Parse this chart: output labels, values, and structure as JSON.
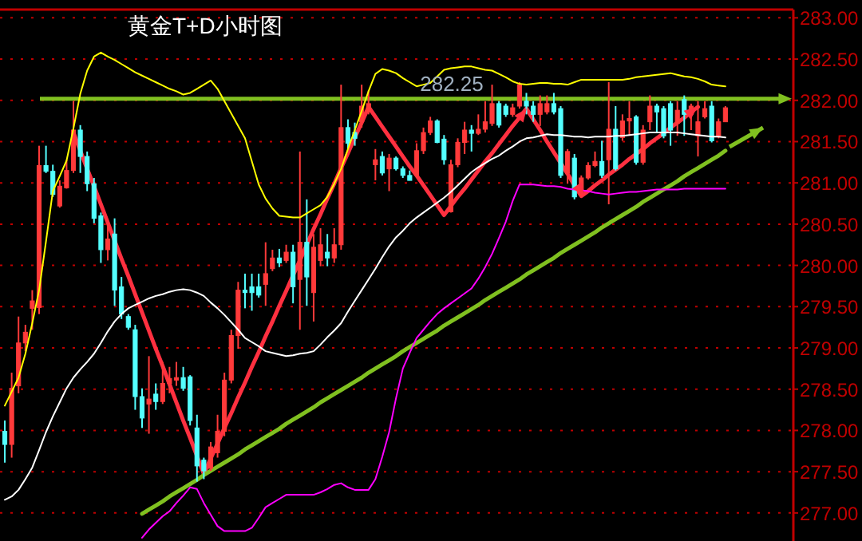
{
  "chart_data": {
    "type": "candlestick",
    "title": "黄金T+D小时图",
    "categories": [
      null,
      null,
      null,
      null,
      null,
      null,
      null,
      null,
      null,
      null,
      null,
      null,
      null,
      null,
      null,
      null,
      null,
      null,
      null,
      null,
      null,
      null,
      null,
      null,
      null,
      null,
      null,
      null,
      null,
      null,
      null,
      null,
      null,
      null,
      null,
      null,
      null,
      null,
      null,
      null,
      null,
      null,
      null,
      null,
      null,
      null,
      null,
      null,
      null,
      null,
      null,
      null,
      null,
      null,
      null,
      null,
      null,
      null,
      null,
      null,
      null,
      null,
      null,
      null,
      null,
      null,
      null,
      null,
      null,
      null,
      null,
      null,
      null,
      null,
      null,
      null,
      null,
      null,
      null,
      null,
      null,
      null,
      null,
      null,
      null,
      null,
      null,
      null,
      null,
      null,
      null,
      null,
      null,
      null,
      null,
      null,
      null,
      null,
      null,
      null,
      null,
      null,
      null,
      null,
      null,
      null
    ],
    "ohlc": [
      [
        277.99,
        278.12,
        277.61,
        277.83
      ],
      [
        277.83,
        278.7,
        277.67,
        278.51
      ],
      [
        278.54,
        279.38,
        278.45,
        279.06
      ],
      [
        279.06,
        279.28,
        278.96,
        279.19
      ],
      [
        279.48,
        279.7,
        279.22,
        279.57
      ],
      [
        279.49,
        281.45,
        279.41,
        281.21
      ],
      [
        281.21,
        281.45,
        281.12,
        281.14
      ],
      [
        281.14,
        281.22,
        280.83,
        280.86
      ],
      [
        280.72,
        281.03,
        280.7,
        280.96
      ],
      [
        280.94,
        281.28,
        280.93,
        281.15
      ],
      [
        281.15,
        281.99,
        281.12,
        281.64
      ],
      [
        281.64,
        281.7,
        281.12,
        281.32
      ],
      [
        281.32,
        281.38,
        280.9,
        280.99
      ],
      [
        280.99,
        281.06,
        280.51,
        280.57
      ],
      [
        280.6,
        280.64,
        280.03,
        280.19
      ],
      [
        280.19,
        280.51,
        280.06,
        280.32
      ],
      [
        280.38,
        280.57,
        279.51,
        279.7
      ],
      [
        279.74,
        279.86,
        279.35,
        279.41
      ],
      [
        279.38,
        279.41,
        279.22,
        279.25
      ],
      [
        279.22,
        279.28,
        278.25,
        278.41
      ],
      [
        278.41,
        278.51,
        278.03,
        278.15
      ],
      [
        278.32,
        278.9,
        277.96,
        278.38
      ],
      [
        278.44,
        278.57,
        278.25,
        278.35
      ],
      [
        278.35,
        278.83,
        278.32,
        278.57
      ],
      [
        278.57,
        278.77,
        278.45,
        278.63
      ],
      [
        278.61,
        278.83,
        278.54,
        278.64
      ],
      [
        278.64,
        278.77,
        278.48,
        278.51
      ],
      [
        278.65,
        278.67,
        278.06,
        278.12
      ],
      [
        278.03,
        278.19,
        277.38,
        277.57
      ],
      [
        277.64,
        277.67,
        277.41,
        277.51
      ],
      [
        277.54,
        277.86,
        277.51,
        277.8
      ],
      [
        277.73,
        278.19,
        277.67,
        277.99
      ],
      [
        277.99,
        278.7,
        277.93,
        278.61
      ],
      [
        278.61,
        279.22,
        278.57,
        279.15
      ],
      [
        279.15,
        279.8,
        278.99,
        279.7
      ],
      [
        279.7,
        279.9,
        279.48,
        279.67
      ],
      [
        279.74,
        279.9,
        279.45,
        279.67
      ],
      [
        279.74,
        279.9,
        279.61,
        279.64
      ],
      [
        279.77,
        280.28,
        279.51,
        279.9
      ],
      [
        279.96,
        280.19,
        279.93,
        280.09
      ],
      [
        280.09,
        280.2,
        279.98,
        280.03
      ],
      [
        280.06,
        280.25,
        280.03,
        280.16
      ],
      [
        280.16,
        280.25,
        279.54,
        279.74
      ],
      [
        279.83,
        281.38,
        279.22,
        280.28
      ],
      [
        280.28,
        280.8,
        279.51,
        279.86
      ],
      [
        279.67,
        280.38,
        279.32,
        280.22
      ],
      [
        280.06,
        280.45,
        279.99,
        280.25
      ],
      [
        280.16,
        280.38,
        279.99,
        280.09
      ],
      [
        280.09,
        280.45,
        280.03,
        280.25
      ],
      [
        280.25,
        282.19,
        280.19,
        281.67
      ],
      [
        281.67,
        281.77,
        281.41,
        281.48
      ],
      [
        281.61,
        281.73,
        281.45,
        281.54
      ],
      [
        281.74,
        282.19,
        281.67,
        281.93
      ],
      [
        281.86,
        282.12,
        281.83,
        281.96
      ],
      [
        281.22,
        281.41,
        281.03,
        281.28
      ],
      [
        281.32,
        281.38,
        281.09,
        281.12
      ],
      [
        281.17,
        281.35,
        280.9,
        281.3
      ],
      [
        281.3,
        281.32,
        281.15,
        281.17
      ],
      [
        281.17,
        281.2,
        281.06,
        281.09
      ],
      [
        281.09,
        281.15,
        281.03,
        281.03
      ],
      [
        281.09,
        281.48,
        281.06,
        281.39
      ],
      [
        281.39,
        281.67,
        281.35,
        281.61
      ],
      [
        281.61,
        281.8,
        281.58,
        281.75
      ],
      [
        281.75,
        281.77,
        281.48,
        281.49
      ],
      [
        281.53,
        281.58,
        281.22,
        281.28
      ],
      [
        280.65,
        281.28,
        280.64,
        281.22
      ],
      [
        281.22,
        281.54,
        281.19,
        281.49
      ],
      [
        281.49,
        281.74,
        281.35,
        281.64
      ],
      [
        281.64,
        281.7,
        281.38,
        281.6
      ],
      [
        281.6,
        281.83,
        281.58,
        281.65
      ],
      [
        281.65,
        281.99,
        281.61,
        281.74
      ],
      [
        281.72,
        282.19,
        281.69,
        281.96
      ],
      [
        281.96,
        281.99,
        281.67,
        281.7
      ],
      [
        281.93,
        281.96,
        281.8,
        281.83
      ],
      [
        281.83,
        281.96,
        281.8,
        281.91
      ],
      [
        281.93,
        282.22,
        281.9,
        282.19
      ],
      [
        281.99,
        282.09,
        281.83,
        281.93
      ],
      [
        281.93,
        281.99,
        281.74,
        281.83
      ],
      [
        281.83,
        282.06,
        281.69,
        281.96
      ],
      [
        281.86,
        282.06,
        281.83,
        281.96
      ],
      [
        281.96,
        282.09,
        281.83,
        281.86
      ],
      [
        281.9,
        281.93,
        281.06,
        281.09
      ],
      [
        281.12,
        281.41,
        280.99,
        281.38
      ],
      [
        281.3,
        281.35,
        280.8,
        280.83
      ],
      [
        280.85,
        281.09,
        280.84,
        281.06
      ],
      [
        281.06,
        281.25,
        281.04,
        281.21
      ],
      [
        281.21,
        281.38,
        281.19,
        281.26
      ],
      [
        281.26,
        281.51,
        281.06,
        281.09
      ],
      [
        281.28,
        282.22,
        280.74,
        281.65
      ],
      [
        281.65,
        281.93,
        281.15,
        281.17
      ],
      [
        281.55,
        281.83,
        281.51,
        281.75
      ],
      [
        281.75,
        281.99,
        281.57,
        281.78
      ],
      [
        281.8,
        281.82,
        281.22,
        281.25
      ],
      [
        281.25,
        281.7,
        281.22,
        281.64
      ],
      [
        281.74,
        282.06,
        281.64,
        281.93
      ],
      [
        281.93,
        281.96,
        281.61,
        281.86
      ],
      [
        281.9,
        281.93,
        281.54,
        281.57
      ],
      [
        281.96,
        281.99,
        281.45,
        281.64
      ],
      [
        281.72,
        281.99,
        281.57,
        281.88
      ],
      [
        282.01,
        282.06,
        281.57,
        281.83
      ],
      [
        281.83,
        281.96,
        281.64,
        281.93
      ],
      [
        281.57,
        281.99,
        281.32,
        281.74
      ],
      [
        281.8,
        281.99,
        281.78,
        281.9
      ],
      [
        281.93,
        281.99,
        281.49,
        281.51
      ],
      [
        281.57,
        281.78,
        281.54,
        281.74
      ],
      [
        281.74,
        281.93,
        281.74,
        281.91
      ]
    ],
    "series": [
      {
        "type": "line",
        "color": "#ffff00",
        "values": [
          278.3,
          278.47,
          278.64,
          278.93,
          279.3,
          279.7,
          280.29,
          280.9,
          281.08,
          281.27,
          281.66,
          282.08,
          282.36,
          282.53,
          282.58,
          282.53,
          282.49,
          282.44,
          282.39,
          282.34,
          282.3,
          282.26,
          282.22,
          282.18,
          282.14,
          282.11,
          282.07,
          282.09,
          282.14,
          282.19,
          282.24,
          282.14,
          281.99,
          281.84,
          281.69,
          281.54,
          281.26,
          280.98,
          280.81,
          280.69,
          280.6,
          280.59,
          280.58,
          280.58,
          280.63,
          280.68,
          280.73,
          280.83,
          280.99,
          281.17,
          281.41,
          281.64,
          281.87,
          282.11,
          282.32,
          282.38,
          282.36,
          282.33,
          282.27,
          282.22,
          282.17,
          282.19,
          282.21,
          282.29,
          282.37,
          282.39,
          282.4,
          282.41,
          282.41,
          282.39,
          282.37,
          282.36,
          282.32,
          282.28,
          282.23,
          282.2,
          282.19,
          282.2,
          282.21,
          282.21,
          282.2,
          282.2,
          282.19,
          282.22,
          282.25,
          282.25,
          282.25,
          282.25,
          282.25,
          282.25,
          282.25,
          282.26,
          282.28,
          282.29,
          282.3,
          282.31,
          282.32,
          282.33,
          282.31,
          282.29,
          282.28,
          282.26,
          282.23,
          282.19,
          282.18,
          282.17
        ]
      },
      {
        "type": "line",
        "color": "#ffffff",
        "values": [
          277.16,
          277.2,
          277.28,
          277.41,
          277.55,
          277.76,
          277.98,
          278.17,
          278.34,
          278.51,
          278.64,
          278.74,
          278.83,
          278.93,
          279.06,
          279.2,
          279.32,
          279.41,
          279.48,
          279.52,
          279.56,
          279.6,
          279.63,
          279.65,
          279.68,
          279.7,
          279.71,
          279.7,
          279.67,
          279.63,
          279.55,
          279.48,
          279.4,
          279.31,
          279.22,
          279.12,
          279.07,
          279.02,
          278.96,
          278.94,
          278.92,
          278.9,
          278.91,
          278.93,
          278.94,
          278.96,
          279.04,
          279.13,
          279.21,
          279.3,
          279.44,
          279.57,
          279.7,
          279.83,
          279.96,
          280.1,
          280.23,
          280.34,
          280.42,
          280.51,
          280.58,
          280.64,
          280.7,
          280.76,
          280.82,
          280.89,
          280.97,
          281.05,
          281.13,
          281.19,
          281.24,
          281.29,
          281.33,
          281.39,
          281.44,
          281.5,
          281.54,
          281.55,
          281.57,
          281.59,
          281.58,
          281.58,
          281.57,
          281.56,
          281.56,
          281.55,
          281.56,
          281.56,
          281.56,
          281.57,
          281.57,
          281.58,
          281.59,
          281.6,
          281.61,
          281.61,
          281.61,
          281.61,
          281.61,
          281.6,
          281.59,
          281.58,
          281.57,
          281.56,
          281.56,
          281.55
        ]
      },
      {
        "type": "line",
        "color": "#ff00ff",
        "values": [
          null,
          null,
          null,
          null,
          null,
          null,
          null,
          null,
          null,
          null,
          null,
          null,
          null,
          null,
          null,
          null,
          null,
          null,
          null,
          null,
          276.7,
          276.8,
          276.88,
          276.96,
          277.02,
          277.12,
          277.21,
          277.31,
          277.29,
          277.12,
          276.98,
          276.84,
          276.78,
          276.78,
          276.78,
          276.78,
          276.82,
          276.94,
          277.07,
          277.12,
          277.17,
          277.22,
          277.22,
          277.22,
          277.22,
          277.22,
          277.25,
          277.29,
          277.34,
          277.36,
          277.31,
          277.28,
          277.28,
          277.28,
          277.41,
          277.68,
          277.98,
          278.39,
          278.75,
          278.94,
          279.12,
          279.22,
          279.32,
          279.41,
          279.48,
          279.54,
          279.6,
          279.66,
          279.72,
          279.84,
          279.98,
          280.14,
          280.33,
          280.53,
          280.78,
          280.98,
          280.98,
          280.98,
          280.97,
          280.96,
          280.96,
          280.95,
          280.93,
          280.92,
          280.91,
          280.9,
          280.88,
          280.87,
          280.86,
          280.87,
          280.88,
          280.89,
          280.89,
          280.9,
          280.91,
          280.92,
          280.92,
          280.92,
          280.92,
          280.93,
          280.93,
          280.93,
          280.93,
          280.93,
          280.93,
          280.93
        ]
      },
      {
        "type": "line",
        "color": "#ff3040",
        "values": [
          null,
          null,
          null,
          null,
          null,
          null,
          null,
          null,
          null,
          null,
          281.61,
          281.39,
          281.17,
          280.96,
          280.74,
          280.52,
          280.3,
          280.08,
          279.87,
          279.65,
          279.43,
          279.21,
          278.99,
          278.78,
          278.56,
          278.34,
          278.12,
          277.91,
          277.69,
          277.47,
          277.66,
          277.84,
          278.03,
          278.21,
          278.4,
          278.58,
          278.77,
          278.95,
          279.14,
          279.32,
          279.51,
          279.69,
          279.88,
          280.06,
          280.25,
          280.44,
          280.62,
          280.81,
          280.99,
          281.18,
          281.36,
          281.55,
          281.73,
          281.92,
          281.8,
          281.68,
          281.56,
          281.44,
          281.32,
          281.2,
          281.09,
          280.97,
          280.85,
          280.73,
          280.61,
          280.72,
          280.83,
          280.93,
          281.04,
          281.15,
          281.26,
          281.36,
          281.47,
          281.58,
          281.69,
          281.79,
          281.9,
          281.77,
          281.64,
          281.5,
          281.37,
          281.24,
          281.11,
          280.97,
          280.84,
          280.9,
          280.97,
          281.03,
          281.1,
          281.16,
          281.22,
          281.29,
          281.35,
          281.41,
          281.48,
          281.54,
          281.6,
          281.67,
          281.73,
          281.79,
          281.86,
          281.92,
          null,
          null,
          null,
          null
        ]
      },
      {
        "type": "line",
        "color": "#80c020",
        "values": [
          null,
          null,
          null,
          null,
          null,
          null,
          null,
          null,
          null,
          null,
          null,
          null,
          null,
          null,
          null,
          null,
          null,
          null,
          null,
          null,
          276.99,
          277.04,
          277.09,
          277.14,
          277.2,
          277.25,
          277.3,
          277.35,
          277.4,
          277.46,
          277.51,
          277.56,
          277.61,
          277.66,
          277.71,
          277.77,
          277.82,
          277.87,
          277.92,
          277.97,
          278.02,
          278.08,
          278.13,
          278.18,
          278.23,
          278.28,
          278.34,
          278.39,
          278.44,
          278.49,
          278.54,
          278.59,
          278.64,
          278.7,
          278.75,
          278.8,
          278.85,
          278.9,
          278.96,
          279.01,
          279.06,
          279.11,
          279.16,
          279.21,
          279.27,
          279.32,
          279.37,
          279.42,
          279.47,
          279.52,
          279.58,
          279.63,
          279.68,
          279.73,
          279.78,
          279.83,
          279.89,
          279.94,
          279.99,
          280.04,
          280.09,
          280.15,
          280.2,
          280.25,
          280.3,
          280.35,
          280.4,
          280.46,
          280.51,
          280.56,
          280.61,
          280.66,
          280.71,
          280.77,
          280.82,
          280.87,
          280.92,
          280.97,
          281.02,
          281.08,
          281.13,
          281.18,
          281.23,
          281.28,
          281.33,
          281.39
        ]
      }
    ],
    "ref_lines": [
      {
        "axis": "y",
        "value": 282.02,
        "color": "#80c020"
      }
    ],
    "annotations": [
      "282.25"
    ],
    "ylim": [
      276.66,
      283.1
    ],
    "yticks": [
      {
        "value": 277,
        "label": "277.00"
      },
      {
        "value": 277.5,
        "label": "277.50"
      },
      {
        "value": 278,
        "label": "278.00"
      },
      {
        "value": 278.5,
        "label": "278.50"
      },
      {
        "value": 279,
        "label": "279.00"
      },
      {
        "value": 279.5,
        "label": "279.50"
      },
      {
        "value": 280,
        "label": "280.00"
      },
      {
        "value": 280.5,
        "label": "280.50"
      },
      {
        "value": 281,
        "label": "281.00"
      },
      {
        "value": 281.5,
        "label": "281.50"
      },
      {
        "value": 282,
        "label": "282.00"
      },
      {
        "value": 282.5,
        "label": "282.50"
      },
      {
        "value": 283,
        "label": "283.00"
      }
    ],
    "grid": "y",
    "tick_labels": "y"
  }
}
